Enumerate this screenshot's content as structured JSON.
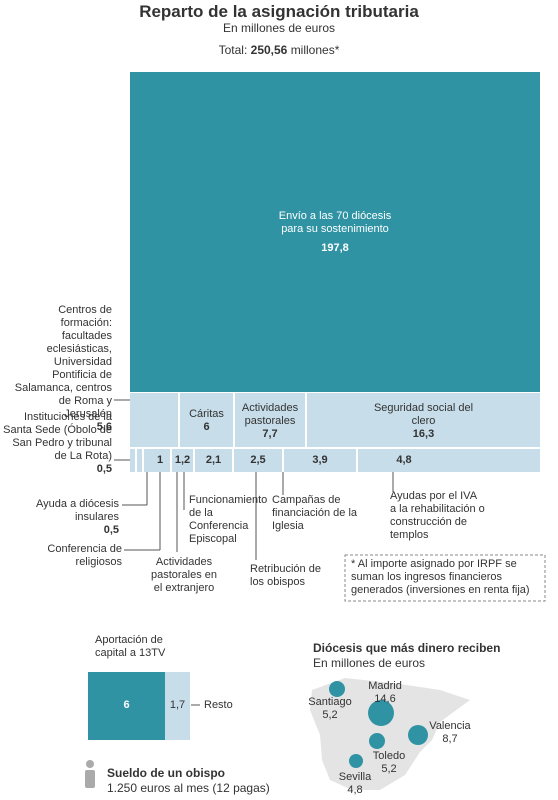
{
  "header": {
    "title": "Reparto de la asignación tributaria",
    "subtitle": "En millones de euros",
    "total_label": "Total:",
    "total_value": "250,56",
    "total_unit": "millones*"
  },
  "treemap": {
    "items": [
      {
        "label": "Envío a las 70 diócesis para su sostenimiento",
        "value": "197,8"
      },
      {
        "label": "Centros de formación: facultades eclesiásticas, Universidad Pontificia de Salamanca, centros de Roma y Jerusalén",
        "value": "5,6"
      },
      {
        "label": "Cáritas",
        "value": "6"
      },
      {
        "label": "Actividades pastorales",
        "value": "7,7"
      },
      {
        "label": "Seguridad social del clero",
        "value": "16,3"
      },
      {
        "label": "Instituciones de la Santa Sede (Óbolo de San Pedro y tribunal de La Rota)",
        "value": "0,5"
      },
      {
        "label": "Ayuda a diócesis insulares",
        "value": "0,5"
      },
      {
        "label": "Conferencia de religiosos",
        "value": "1"
      },
      {
        "label": "Actividades pastorales en el extranjero",
        "value": "1,2"
      },
      {
        "label": "Funcionamiento de la Conferencia Episcopal",
        "value": "2,1"
      },
      {
        "label": "Retribución de los obispos",
        "value": "2,5"
      },
      {
        "label": "Campañas de financiación de la Iglesia",
        "value": "3,9"
      },
      {
        "label": "Ayudas por el IVA a la rehabilitación o construcción de templos",
        "value": "4,8"
      }
    ]
  },
  "note": "* Al importe asignado por IRPF se suman los ingresos financieros generados (inversiones en renta fija)",
  "capital": {
    "label": "Aportación de capital a 13TV",
    "value": "6",
    "rest_value": "1,7",
    "rest_label": "Resto"
  },
  "salary": {
    "title": "Sueldo de un obispo",
    "text": "1.250 euros al mes (12 pagas)"
  },
  "dioceses": {
    "title": "Diócesis que más dinero reciben",
    "subtitle": "En millones de euros",
    "items": [
      {
        "name": "Santiago",
        "value": "5,2"
      },
      {
        "name": "Madrid",
        "value": "14,6"
      },
      {
        "name": "Valencia",
        "value": "8,7"
      },
      {
        "name": "Toledo",
        "value": "5,2"
      },
      {
        "name": "Sevilla",
        "value": "4,8"
      }
    ]
  }
}
